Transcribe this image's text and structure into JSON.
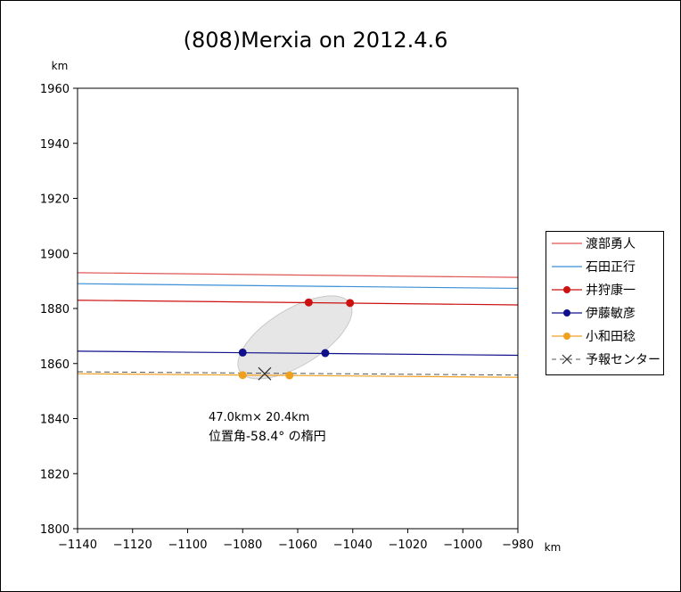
{
  "chart_data": {
    "type": "scatter",
    "title": "(808)Merxia on 2012.4.6",
    "xlabel": "km",
    "ylabel": "km",
    "xlim": [
      -1140,
      -980
    ],
    "ylim": [
      1800,
      1960
    ],
    "xticks": [
      -1140,
      -1120,
      -1100,
      -1080,
      -1060,
      -1040,
      -1020,
      -1000,
      -980
    ],
    "yticks": [
      1800,
      1820,
      1840,
      1860,
      1880,
      1900,
      1920,
      1940,
      1960
    ],
    "xtick_labels": [
      "−1140",
      "−1120",
      "−1100",
      "−1080",
      "−1060",
      "−1040",
      "−1020",
      "−1000",
      "−980"
    ],
    "grid": false,
    "legend_position": "right",
    "series": [
      {
        "name": "渡部勇人",
        "style": "line",
        "color": "#e05555",
        "marker": "none",
        "x": [
          -1140,
          -980
        ],
        "y": [
          1893.0,
          1891.3
        ]
      },
      {
        "name": "石田正行",
        "style": "line",
        "color": "#3a8fd6",
        "marker": "none",
        "x": [
          -1140,
          -980
        ],
        "y": [
          1889.0,
          1887.3
        ]
      },
      {
        "name": "井狩康一",
        "style": "line",
        "color": "#cc1111",
        "marker": "circle",
        "x": [
          -1140,
          -980
        ],
        "y": [
          1883.0,
          1881.3
        ],
        "chord_points": {
          "x": [
            -1056,
            -1041
          ],
          "y": [
            1882.2,
            1882.0
          ]
        }
      },
      {
        "name": "伊藤敏彦",
        "style": "line",
        "color": "#10108a",
        "marker": "circle",
        "x": [
          -1140,
          -980
        ],
        "y": [
          1864.5,
          1863.0
        ],
        "chord_points": {
          "x": [
            -1080,
            -1050
          ],
          "y": [
            1864.0,
            1863.8
          ]
        }
      },
      {
        "name": "小和田稔",
        "style": "line",
        "color": "#f0a020",
        "marker": "circle",
        "x": [
          -1140,
          -980
        ],
        "y": [
          1856.3,
          1855.0
        ],
        "chord_points": {
          "x": [
            -1080,
            -1063
          ],
          "y": [
            1855.8,
            1855.7
          ]
        }
      },
      {
        "name": "予報センター",
        "style": "dashed",
        "color": "#555555",
        "marker": "x",
        "x": [
          -1140,
          -980
        ],
        "y": [
          1857.0,
          1855.8
        ],
        "center": {
          "x": -1072,
          "y": 1856.3
        }
      }
    ],
    "ellipse": {
      "cx": -1061,
      "cy": 1869.5,
      "major_km": 47.0,
      "minor_km": 20.4,
      "position_angle_deg": -58.4,
      "fill": "#e6e6e6",
      "stroke": "#c8c8c8"
    },
    "annotations": [
      "47.0km× 20.4km",
      "位置角-58.4° の楕円"
    ]
  },
  "legend": {
    "items": [
      "渡部勇人",
      "石田正行",
      "井狩康一",
      "伊藤敏彦",
      "小和田稔",
      "予報センター"
    ]
  }
}
